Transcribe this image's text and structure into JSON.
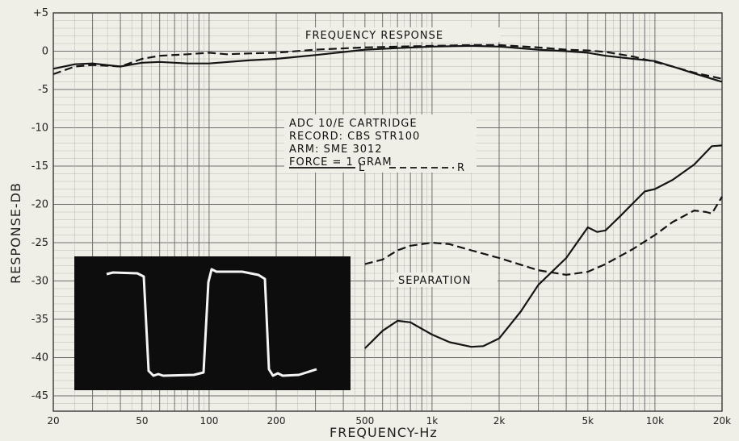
{
  "chart_data": {
    "type": "line",
    "xscale": "log",
    "xlim": [
      20,
      20000
    ],
    "ylim": [
      -47,
      5
    ],
    "xlabel": "FREQUENCY-Hz",
    "ylabel": "RESPONSE-DB",
    "y_ticks": [
      {
        "v": 5,
        "label": "+5"
      },
      {
        "v": 0,
        "label": "0"
      },
      {
        "v": -5,
        "label": "-5"
      },
      {
        "v": -10,
        "label": "-10"
      },
      {
        "v": -15,
        "label": "-15"
      },
      {
        "v": -20,
        "label": "-20"
      },
      {
        "v": -25,
        "label": "-25"
      },
      {
        "v": -30,
        "label": "-30"
      },
      {
        "v": -35,
        "label": "-35"
      },
      {
        "v": -40,
        "label": "-40"
      },
      {
        "v": -45,
        "label": "-45"
      }
    ],
    "x_ticks": [
      {
        "v": 20,
        "label": "20"
      },
      {
        "v": 50,
        "label": "50"
      },
      {
        "v": 100,
        "label": "100"
      },
      {
        "v": 200,
        "label": "200"
      },
      {
        "v": 500,
        "label": "500"
      },
      {
        "v": 1000,
        "label": "1k"
      },
      {
        "v": 2000,
        "label": "2k"
      },
      {
        "v": 5000,
        "label": "5k"
      },
      {
        "v": 10000,
        "label": "10k"
      },
      {
        "v": 20000,
        "label": "20k"
      }
    ],
    "grid": true,
    "annotations": {
      "frequency_response": "FREQUENCY RESPONSE",
      "separation": "SEPARATION",
      "info_lines": [
        "ADC 10/E CARTRIDGE",
        "RECORD: CBS STR100",
        "ARM: SME 3012",
        "FORCE = 1 GRAM"
      ],
      "legend_l": "L",
      "legend_r": "R"
    },
    "series": [
      {
        "name": "L",
        "group": "frequency response",
        "style": "solid",
        "points": [
          [
            20,
            -2.3
          ],
          [
            25,
            -1.7
          ],
          [
            30,
            -1.6
          ],
          [
            40,
            -2.0
          ],
          [
            50,
            -1.5
          ],
          [
            60,
            -1.4
          ],
          [
            80,
            -1.6
          ],
          [
            100,
            -1.6
          ],
          [
            150,
            -1.2
          ],
          [
            200,
            -1.0
          ],
          [
            300,
            -0.5
          ],
          [
            500,
            0.2
          ],
          [
            700,
            0.4
          ],
          [
            1000,
            0.6
          ],
          [
            1500,
            0.7
          ],
          [
            2000,
            0.6
          ],
          [
            3000,
            0.2
          ],
          [
            4000,
            0
          ],
          [
            5000,
            -0.2
          ],
          [
            6000,
            -0.6
          ],
          [
            8000,
            -1.0
          ],
          [
            10000,
            -1.3
          ],
          [
            12000,
            -2.0
          ],
          [
            15000,
            -2.9
          ],
          [
            20000,
            -4.0
          ]
        ]
      },
      {
        "name": "R",
        "group": "frequency response",
        "style": "dashed",
        "points": [
          [
            20,
            -3.0
          ],
          [
            25,
            -2.0
          ],
          [
            30,
            -1.8
          ],
          [
            40,
            -2.0
          ],
          [
            50,
            -1.0
          ],
          [
            60,
            -0.6
          ],
          [
            80,
            -0.4
          ],
          [
            100,
            -0.2
          ],
          [
            120,
            -0.4
          ],
          [
            150,
            -0.3
          ],
          [
            200,
            -0.2
          ],
          [
            300,
            0.2
          ],
          [
            500,
            0.5
          ],
          [
            700,
            0.6
          ],
          [
            1000,
            0.7
          ],
          [
            1500,
            0.8
          ],
          [
            2000,
            0.8
          ],
          [
            3000,
            0.5
          ],
          [
            4000,
            0.2
          ],
          [
            5000,
            0.1
          ],
          [
            6000,
            -0.1
          ],
          [
            8000,
            -0.7
          ],
          [
            10000,
            -1.4
          ],
          [
            12000,
            -2.0
          ],
          [
            15000,
            -2.8
          ],
          [
            20000,
            -3.6
          ]
        ]
      },
      {
        "name": "L",
        "group": "separation",
        "style": "solid",
        "points": [
          [
            500,
            -38.8
          ],
          [
            600,
            -36.5
          ],
          [
            700,
            -35.2
          ],
          [
            800,
            -35.4
          ],
          [
            1000,
            -37.0
          ],
          [
            1200,
            -38.0
          ],
          [
            1500,
            -38.6
          ],
          [
            1700,
            -38.5
          ],
          [
            2000,
            -37.5
          ],
          [
            2500,
            -34.0
          ],
          [
            3000,
            -30.5
          ],
          [
            4000,
            -27.0
          ],
          [
            5000,
            -23.0
          ],
          [
            5500,
            -23.6
          ],
          [
            6000,
            -23.4
          ],
          [
            7000,
            -21.5
          ],
          [
            8000,
            -19.8
          ],
          [
            9000,
            -18.3
          ],
          [
            10000,
            -18.0
          ],
          [
            12000,
            -16.8
          ],
          [
            15000,
            -14.8
          ],
          [
            18000,
            -12.4
          ],
          [
            20000,
            -12.3
          ]
        ]
      },
      {
        "name": "R",
        "group": "separation",
        "style": "dashed",
        "points": [
          [
            500,
            -27.8
          ],
          [
            600,
            -27.2
          ],
          [
            700,
            -26.0
          ],
          [
            800,
            -25.4
          ],
          [
            1000,
            -25.0
          ],
          [
            1200,
            -25.2
          ],
          [
            1500,
            -26.0
          ],
          [
            2000,
            -27.0
          ],
          [
            3000,
            -28.6
          ],
          [
            4000,
            -29.2
          ],
          [
            5000,
            -28.8
          ],
          [
            6000,
            -27.8
          ],
          [
            8000,
            -25.8
          ],
          [
            10000,
            -24.0
          ],
          [
            12000,
            -22.3
          ],
          [
            15000,
            -20.8
          ],
          [
            17000,
            -21.0
          ],
          [
            18000,
            -21.2
          ],
          [
            20000,
            -19.0
          ]
        ]
      }
    ]
  }
}
